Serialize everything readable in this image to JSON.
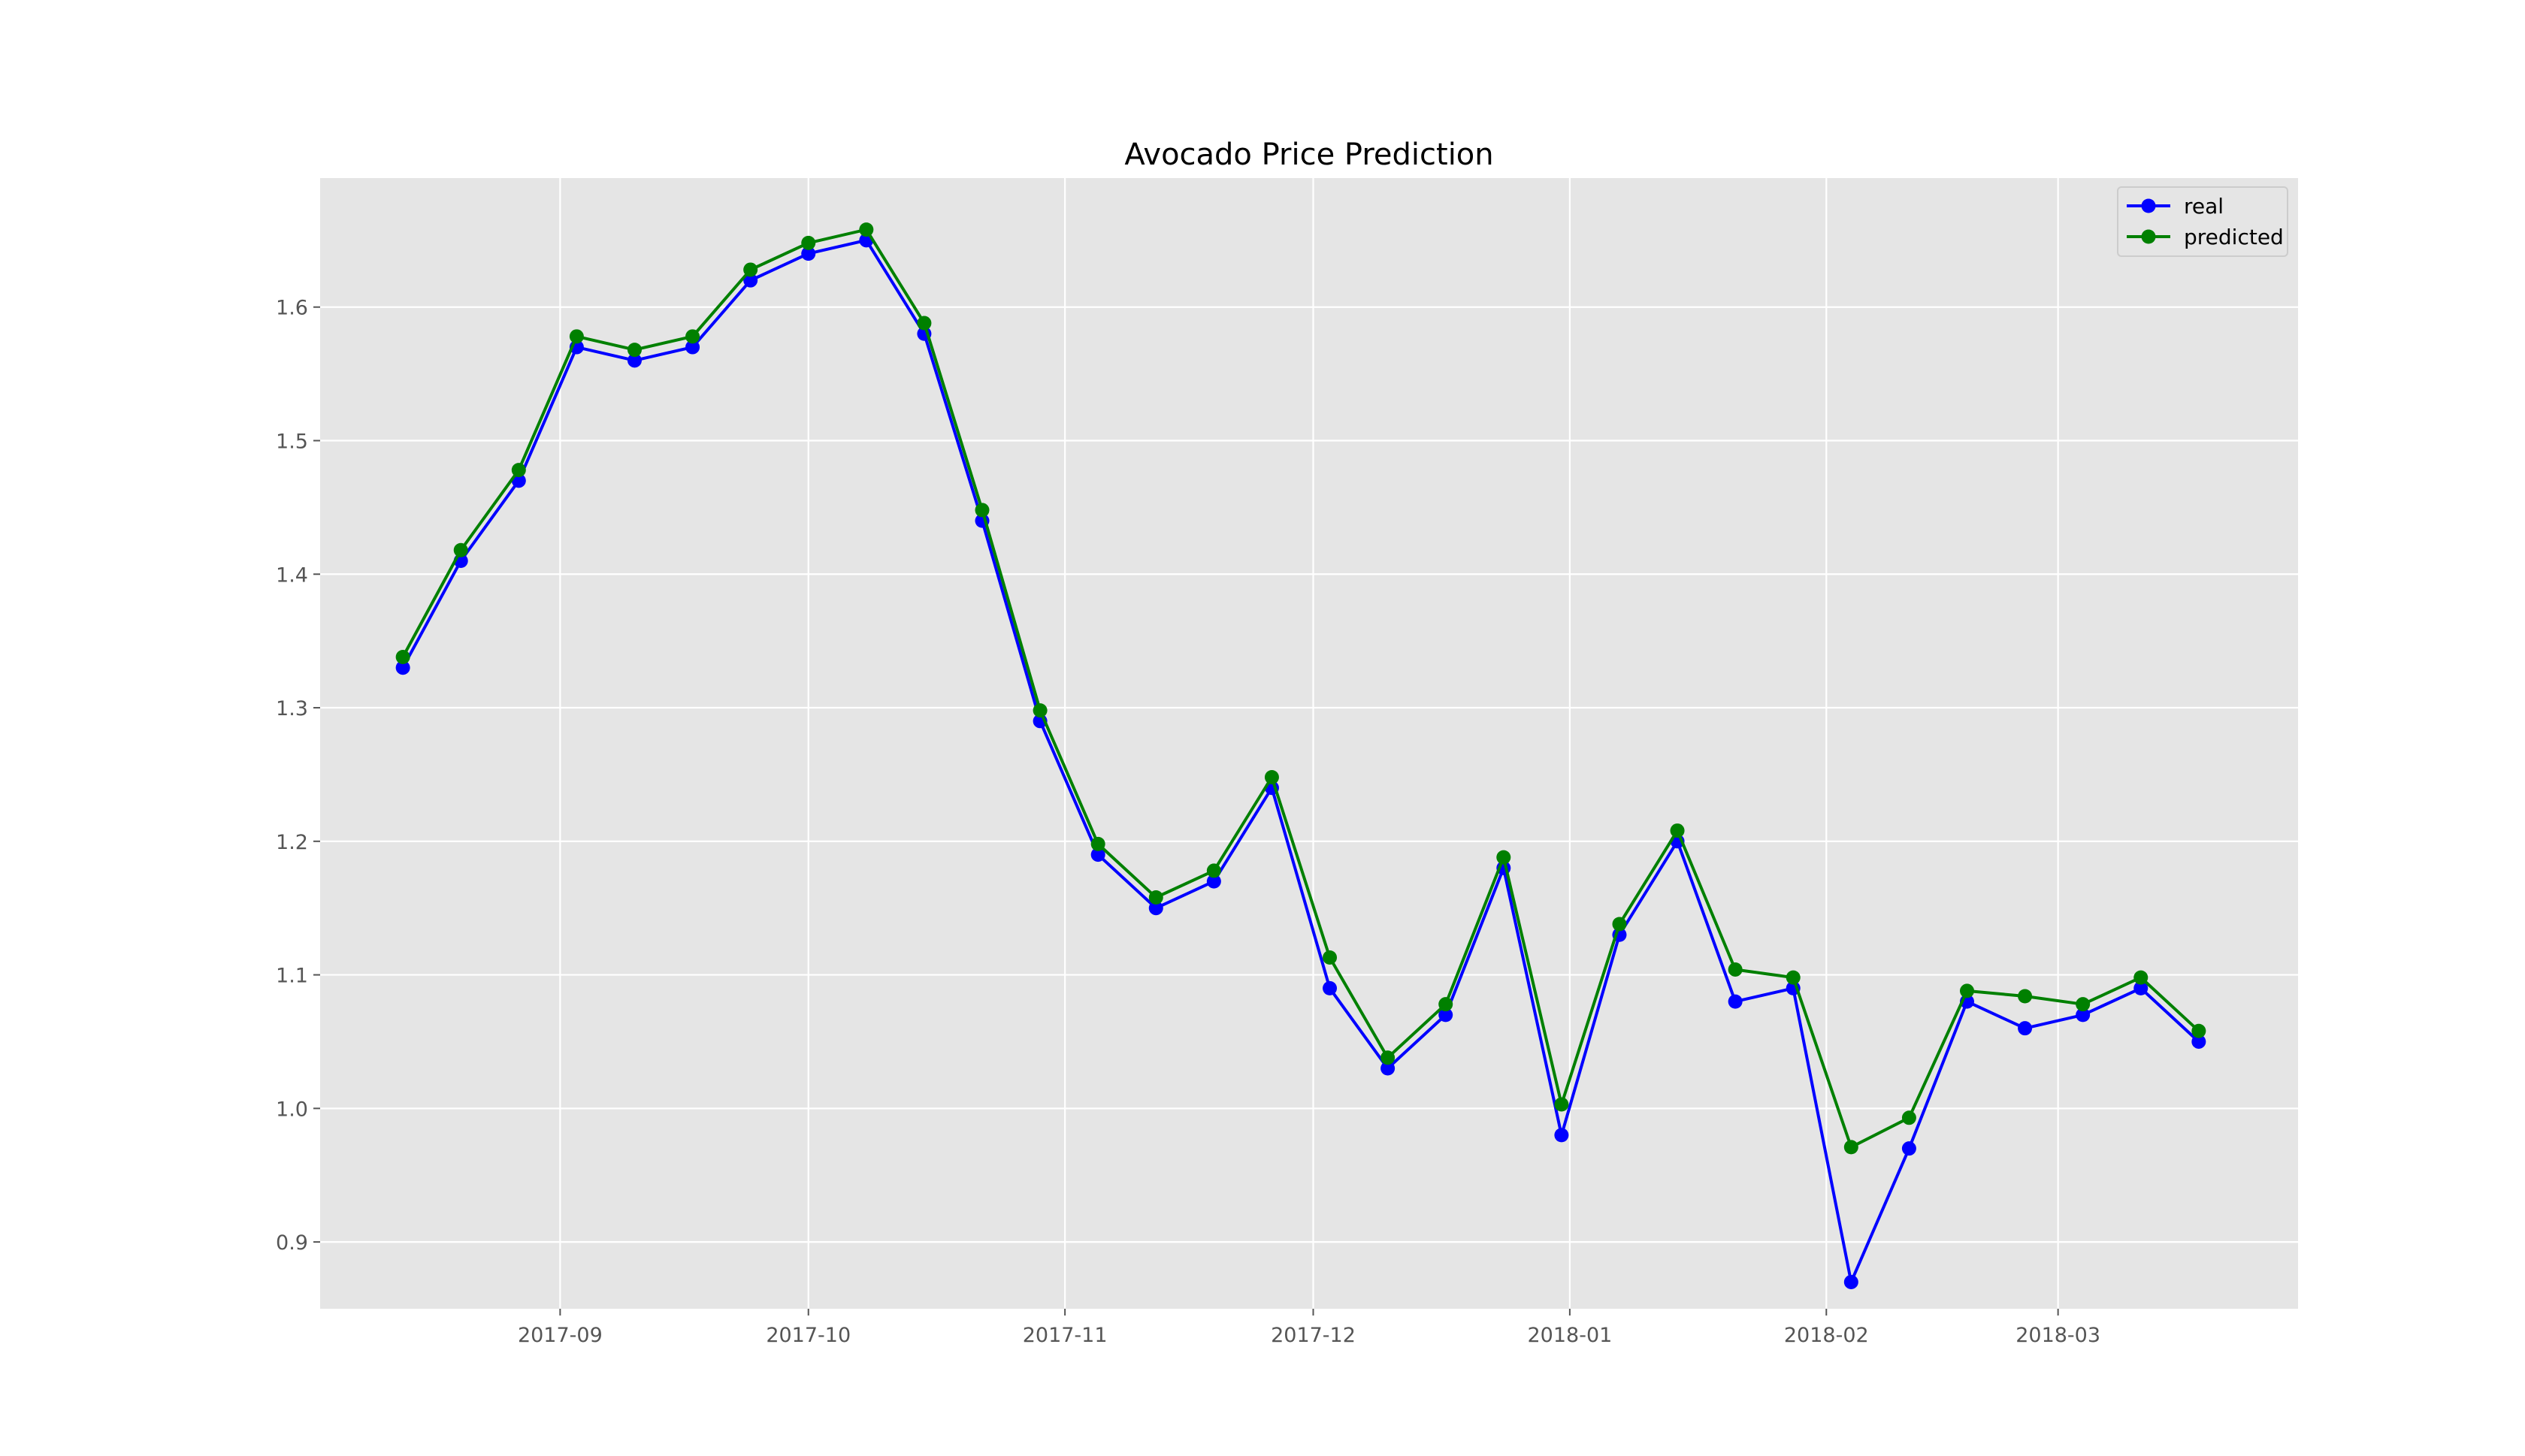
{
  "chart_data": {
    "type": "line",
    "title": "Avocado Price Prediction",
    "xlabel": "",
    "ylabel": "",
    "x": [
      "2017-08-13",
      "2017-08-20",
      "2017-08-27",
      "2017-09-03",
      "2017-09-10",
      "2017-09-17",
      "2017-09-24",
      "2017-10-01",
      "2017-10-08",
      "2017-10-15",
      "2017-10-22",
      "2017-10-29",
      "2017-11-05",
      "2017-11-12",
      "2017-11-19",
      "2017-11-26",
      "2017-12-03",
      "2017-12-10",
      "2017-12-17",
      "2017-12-24",
      "2017-12-31",
      "2018-01-07",
      "2018-01-14",
      "2018-01-21",
      "2018-01-28",
      "2018-02-04",
      "2018-02-11",
      "2018-02-18",
      "2018-02-25",
      "2018-03-04",
      "2018-03-11",
      "2018-03-18"
    ],
    "series": [
      {
        "name": "real",
        "color": "#0000ff",
        "values": [
          1.33,
          1.41,
          1.47,
          1.57,
          1.56,
          1.57,
          1.62,
          1.64,
          1.65,
          1.58,
          1.44,
          1.29,
          1.19,
          1.15,
          1.17,
          1.24,
          1.09,
          1.03,
          1.07,
          1.18,
          0.98,
          1.13,
          1.2,
          1.08,
          1.09,
          0.87,
          0.97,
          1.08,
          1.06,
          1.07,
          1.09,
          1.05
        ]
      },
      {
        "name": "predicted",
        "color": "#008000",
        "values": [
          1.338,
          1.418,
          1.478,
          1.578,
          1.568,
          1.578,
          1.628,
          1.648,
          1.658,
          1.588,
          1.448,
          1.298,
          1.198,
          1.158,
          1.178,
          1.248,
          1.113,
          1.038,
          1.078,
          1.188,
          1.003,
          1.138,
          1.208,
          1.104,
          1.098,
          0.971,
          0.993,
          1.088,
          1.084,
          1.078,
          1.098,
          1.058
        ]
      }
    ],
    "xlim": [
      "2017-08-03",
      "2018-03-30"
    ],
    "ylim": [
      0.85,
      1.6966
    ],
    "x_ticks": [
      {
        "date": "2017-09-01",
        "label": "2017-09"
      },
      {
        "date": "2017-10-01",
        "label": "2017-10"
      },
      {
        "date": "2017-11-01",
        "label": "2017-11"
      },
      {
        "date": "2017-12-01",
        "label": "2017-12"
      },
      {
        "date": "2018-01-01",
        "label": "2018-01"
      },
      {
        "date": "2018-02-01",
        "label": "2018-02"
      },
      {
        "date": "2018-03-01",
        "label": "2018-03"
      }
    ],
    "y_ticks": [
      {
        "value": 0.9,
        "label": "0.9"
      },
      {
        "value": 1.0,
        "label": "1.0"
      },
      {
        "value": 1.1,
        "label": "1.1"
      },
      {
        "value": 1.2,
        "label": "1.2"
      },
      {
        "value": 1.3,
        "label": "1.3"
      },
      {
        "value": 1.4,
        "label": "1.4"
      },
      {
        "value": 1.5,
        "label": "1.5"
      },
      {
        "value": 1.6,
        "label": "1.6"
      }
    ],
    "grid": true,
    "legend_position": "top-right",
    "style": {
      "plot_background": "#e5e5e5",
      "grid_color": "#ffffff"
    }
  }
}
